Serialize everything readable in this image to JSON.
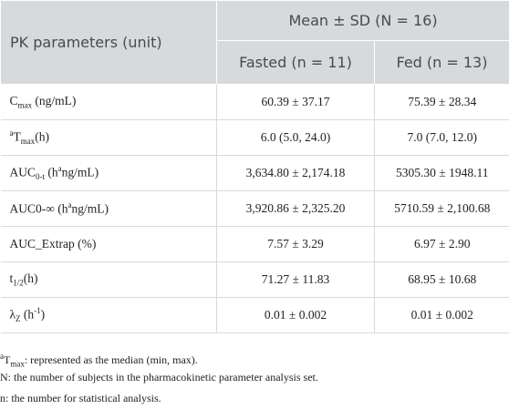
{
  "table": {
    "header": {
      "col1": "PK parameters (unit)",
      "group": "Mean ± SD (N = 16)",
      "col2": "Fasted (n = 11)",
      "col3": "Fed (n = 13)"
    },
    "rows": [
      {
        "label": [
          {
            "text": "C"
          },
          {
            "sub": "max"
          },
          {
            "text": " (ng/mL)"
          }
        ],
        "fasted": "60.39 ± 37.17",
        "fed": "75.39 ± 28.34"
      },
      {
        "label": [
          {
            "sup": "a"
          },
          {
            "text": "T"
          },
          {
            "sub": "max"
          },
          {
            "text": "(h)"
          }
        ],
        "fasted": "6.0 (5.0, 24.0)",
        "fed": "7.0 (7.0, 12.0)"
      },
      {
        "label": [
          {
            "text": "AUC"
          },
          {
            "sub": "0-t"
          },
          {
            "text": " (h"
          },
          {
            "sup": "a"
          },
          {
            "text": "ng/mL)"
          }
        ],
        "fasted": "3,634.80 ± 2,174.18",
        "fed": "5305.30 ± 1948.11"
      },
      {
        "label": [
          {
            "text": "AUC0-∞ (h"
          },
          {
            "sup": "a"
          },
          {
            "text": "ng/mL)"
          }
        ],
        "fasted": "3,920.86 ± 2,325.20",
        "fed": "5710.59 ± 2,100.68"
      },
      {
        "label": [
          {
            "text": "AUC_Extrap (%)"
          }
        ],
        "fasted": "7.57 ± 3.29",
        "fed": "6.97 ± 2.90"
      },
      {
        "label": [
          {
            "text": "t"
          },
          {
            "sub": "1/2"
          },
          {
            "text": "(h)"
          }
        ],
        "fasted": "71.27 ± 11.83",
        "fed": "68.95 ± 10.68"
      },
      {
        "label": [
          {
            "text": "λ"
          },
          {
            "sub": "Z"
          },
          {
            "text": " (h"
          },
          {
            "sup": "-1"
          },
          {
            "text": ")"
          }
        ],
        "fasted": "0.01 ± 0.002",
        "fed": "0.01 ± 0.002"
      }
    ]
  },
  "footnotes": [
    [
      {
        "sup": "a"
      },
      {
        "text": "T"
      },
      {
        "sub": "max"
      },
      {
        "text": ": represented as the median (min, max)."
      }
    ],
    [
      {
        "text": "N: the number of subjects in the pharmacokinetic parameter analysis set."
      }
    ],
    [
      {
        "text": "n: the number for statistical analysis."
      }
    ]
  ]
}
